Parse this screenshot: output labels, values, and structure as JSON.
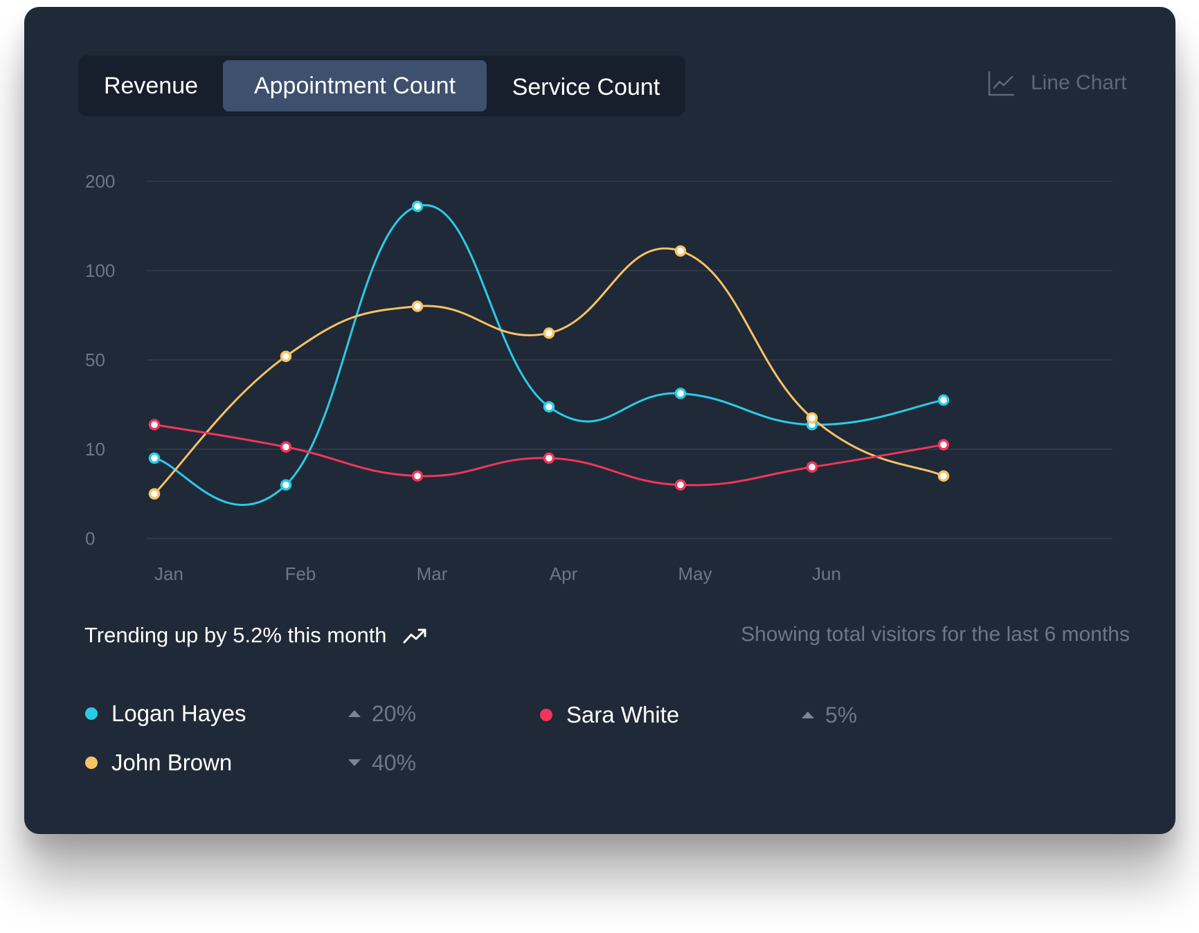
{
  "tabs": [
    {
      "label": "Revenue",
      "active": false
    },
    {
      "label": "Appointment Count",
      "active": true
    },
    {
      "label": "Service Count",
      "active": false
    }
  ],
  "chart_type_label": "Line Chart",
  "chart_type_icon": "line-chart-icon",
  "footer": {
    "trend_text": "Trending up by 5.2% this month",
    "trend_icon": "trending-up-icon",
    "caption": "Showing total visitors for the last 6 months"
  },
  "legend": [
    {
      "name": "Logan Hayes",
      "change": "20%",
      "direction": "up",
      "color": "#2bcbe6"
    },
    {
      "name": "Sara White",
      "change": "5%",
      "direction": "up",
      "color": "#f0355a"
    },
    {
      "name": "John Brown",
      "change": "40%",
      "direction": "down",
      "color": "#f8c365"
    }
  ],
  "colors": {
    "background": "#202937",
    "grid": "#343d4b",
    "active_tab": "#3d506d",
    "tab_bar": "#161f2b"
  },
  "chart_data": {
    "type": "line",
    "x": [
      "Jan",
      "Feb",
      "Mar",
      "Apr",
      "May",
      "Jun",
      ""
    ],
    "y_ticks": [
      0,
      10,
      50,
      100,
      200
    ],
    "ylim": [
      0,
      200
    ],
    "y_scale": "piecewise (equal spacing between ticks)",
    "grid": true,
    "series": [
      {
        "name": "Logan Hayes",
        "color": "#2bcbe6",
        "values": [
          9,
          6,
          172,
          29,
          35,
          21,
          32
        ]
      },
      {
        "name": "John Brown",
        "color": "#f8c365",
        "values": [
          5,
          52,
          80,
          65,
          122,
          24,
          7
        ]
      },
      {
        "name": "Sara White",
        "color": "#f0355a",
        "values": [
          21,
          11,
          7,
          9,
          6,
          8,
          12
        ]
      }
    ]
  }
}
